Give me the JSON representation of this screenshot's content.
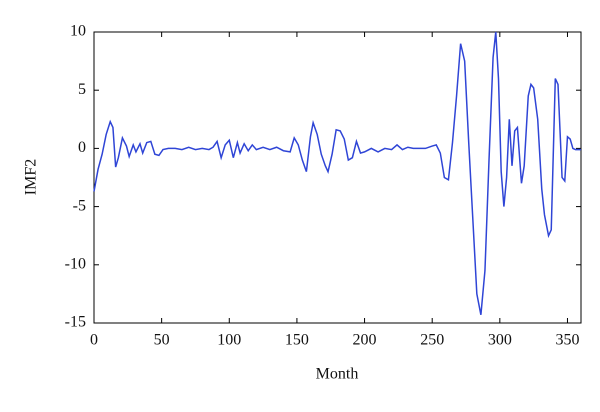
{
  "chart_data": {
    "type": "line",
    "xlabel": "Month",
    "ylabel": "IMF2",
    "x": [
      0,
      3,
      6,
      9,
      12,
      14,
      16,
      18,
      21,
      24,
      26,
      29,
      31,
      34,
      36,
      39,
      42,
      45,
      48,
      51,
      55,
      60,
      65,
      70,
      75,
      80,
      85,
      88,
      91,
      94,
      97,
      100,
      103,
      106,
      108,
      111,
      114,
      117,
      120,
      125,
      130,
      135,
      140,
      145,
      148,
      151,
      154,
      157,
      160,
      162,
      165,
      168,
      171,
      173,
      176,
      179,
      182,
      185,
      188,
      191,
      194,
      197,
      200,
      205,
      210,
      215,
      220,
      224,
      228,
      232,
      236,
      240,
      245,
      250,
      253,
      256,
      259,
      262,
      265,
      268,
      271,
      274,
      277,
      280,
      283,
      286,
      289,
      292,
      295,
      297,
      299,
      301,
      303,
      305,
      307,
      309,
      311,
      313,
      316,
      318,
      321,
      323,
      325,
      328,
      331,
      333,
      336,
      338,
      341,
      343,
      346,
      348,
      350,
      352,
      354,
      356,
      360
    ],
    "series": [
      {
        "name": "IMF2",
        "color": "#2f45d6",
        "values": [
          -3.7,
          -1.8,
          -0.5,
          1.2,
          2.3,
          1.8,
          -1.6,
          -0.8,
          0.9,
          0.2,
          -0.7,
          0.3,
          -0.3,
          0.4,
          -0.4,
          0.5,
          0.6,
          -0.5,
          -0.6,
          -0.1,
          0,
          0,
          -0.1,
          0.1,
          -0.1,
          0,
          -0.1,
          0.1,
          0.6,
          -0.8,
          0.3,
          0.7,
          -0.8,
          0.5,
          -0.4,
          0.4,
          -0.2,
          0.3,
          -0.1,
          0.1,
          -0.1,
          0.1,
          -0.2,
          -0.3,
          0.9,
          0.3,
          -1.0,
          -2.0,
          1.0,
          2.2,
          1.2,
          -0.5,
          -1.5,
          -2.0,
          -0.5,
          1.6,
          1.5,
          0.8,
          -1.0,
          -0.8,
          0.6,
          -0.4,
          -0.3,
          0,
          -0.3,
          0,
          -0.1,
          0.3,
          -0.1,
          0.1,
          0,
          0,
          0,
          0.2,
          0.3,
          -0.4,
          -2.5,
          -2.7,
          0.5,
          4.5,
          9.0,
          7.5,
          0.5,
          -6,
          -12.5,
          -14.3,
          -10.5,
          -1,
          7.8,
          10,
          6,
          -2,
          -5,
          -2.5,
          2.5,
          -1.5,
          1.5,
          1.8,
          -3,
          -1.5,
          4.5,
          5.5,
          5.2,
          2.5,
          -3.5,
          -5.7,
          -7.5,
          -7,
          6,
          5.5,
          -2.5,
          -2.8,
          1.0,
          0.8,
          0,
          -0.1,
          -0.1
        ]
      }
    ],
    "xlim": [
      0,
      360
    ],
    "ylim": [
      -15,
      10
    ],
    "xticks": [
      0,
      50,
      100,
      150,
      200,
      250,
      300,
      350
    ],
    "yticks": [
      -15,
      -10,
      -5,
      0,
      5,
      10
    ]
  }
}
